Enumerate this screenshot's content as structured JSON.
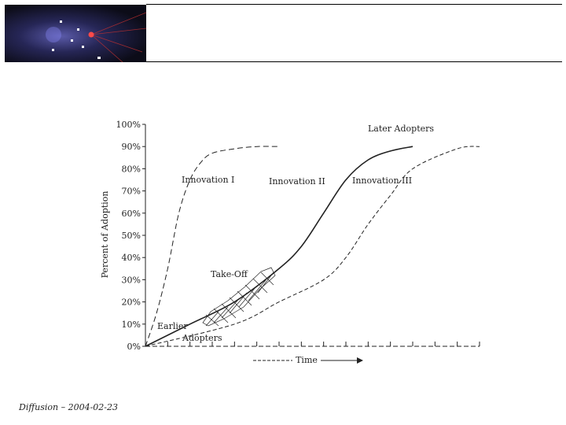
{
  "footer": {
    "text": "Diffusion – 2004-02-23"
  },
  "chart_data": {
    "type": "line",
    "ylabel": "Percent of Adoption",
    "xlabel": "Time",
    "y_ticks": [
      "0%",
      "10%",
      "20%",
      "30%",
      "40%",
      "50%",
      "60%",
      "70%",
      "80%",
      "90%",
      "100%"
    ],
    "ylim": [
      0,
      100
    ],
    "grid": false,
    "series": [
      {
        "name": "Innovation I",
        "x": [
          0,
          5,
          10,
          15,
          20,
          25,
          30,
          40,
          50,
          60
        ],
        "values": [
          0,
          15,
          35,
          60,
          75,
          83,
          87,
          89,
          90,
          90
        ]
      },
      {
        "name": "Innovation II",
        "x": [
          0,
          20,
          40,
          60,
          70,
          80,
          90,
          100,
          110,
          120
        ],
        "values": [
          0,
          10,
          20,
          35,
          45,
          60,
          75,
          84,
          88,
          90
        ]
      },
      {
        "name": "Innovation III",
        "x": [
          0,
          40,
          60,
          80,
          90,
          100,
          110,
          120,
          140,
          150
        ],
        "values": [
          0,
          10,
          20,
          30,
          40,
          55,
          68,
          80,
          89,
          90
        ]
      }
    ],
    "annotations": {
      "later_adopters": "Later Adopters",
      "take_off": "Take-Off",
      "earlier": "Earlier",
      "adopters": "Adopters"
    }
  }
}
